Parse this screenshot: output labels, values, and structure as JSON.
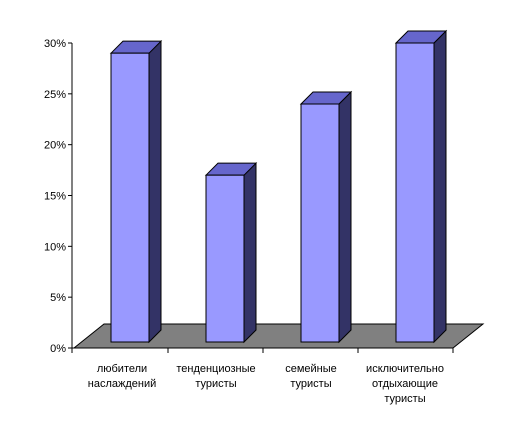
{
  "chart_data": {
    "type": "bar",
    "title": "",
    "xlabel": "",
    "ylabel": "",
    "categories": [
      [
        "любители",
        "наслаждений"
      ],
      [
        "тенденциозные",
        "туристы"
      ],
      [
        "семейные",
        "туристы"
      ],
      [
        "исключительно",
        "отдыхающие",
        "туристы"
      ]
    ],
    "values": [
      29,
      17,
      24,
      30
    ],
    "ylim": [
      0,
      30
    ],
    "yticks": [
      0,
      5,
      10,
      15,
      20,
      25,
      30
    ],
    "ytick_labels": [
      "0%",
      "5%",
      "10%",
      "15%",
      "20%",
      "25%",
      "30%"
    ],
    "grid": false,
    "legend": "none",
    "style": "3d-column",
    "colors": {
      "bar_front": "#9999FF",
      "bar_side": "#333366",
      "bar_top": "#6666CC",
      "floor": "#808080",
      "axis": "#000000"
    }
  }
}
